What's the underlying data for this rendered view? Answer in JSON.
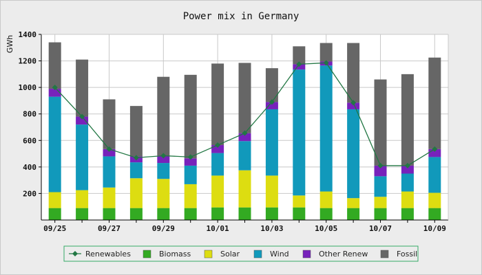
{
  "chart_data": {
    "type": "bar",
    "stacked": true,
    "title": "Power mix in Germany",
    "ylabel": "GWh",
    "xlabel": "",
    "ylim": [
      0,
      1400
    ],
    "yticks": [
      200,
      400,
      600,
      800,
      1000,
      1200,
      1400
    ],
    "grid": true,
    "legend_position": "bottom",
    "categories": [
      "09/25",
      "09/26",
      "09/27",
      "09/28",
      "09/29",
      "09/30",
      "10/01",
      "10/02",
      "10/03",
      "10/04",
      "10/05",
      "10/06",
      "10/07",
      "10/08",
      "10/09"
    ],
    "xtick_labels": [
      "09/25",
      "",
      "09/27",
      "",
      "09/29",
      "",
      "10/01",
      "",
      "10/03",
      "",
      "10/05",
      "",
      "10/07",
      "",
      "10/09"
    ],
    "series": [
      {
        "name": "Biomass",
        "color": "#33aa22",
        "values": [
          90,
          90,
          90,
          90,
          90,
          90,
          95,
          95,
          95,
          95,
          90,
          90,
          90,
          90,
          90
        ]
      },
      {
        "name": "Solar",
        "color": "#dddd11",
        "values": [
          120,
          135,
          155,
          225,
          220,
          180,
          240,
          280,
          240,
          90,
          125,
          75,
          85,
          125,
          115
        ]
      },
      {
        "name": "Wind",
        "color": "#1199bb",
        "values": [
          720,
          495,
          235,
          120,
          120,
          140,
          170,
          220,
          500,
          950,
          950,
          670,
          155,
          135,
          270
        ]
      },
      {
        "name": "Other Renew",
        "color": "#7722bb",
        "values": [
          60,
          60,
          55,
          45,
          55,
          55,
          60,
          60,
          55,
          40,
          30,
          50,
          80,
          60,
          60
        ]
      },
      {
        "name": "Fossil",
        "color": "#666666",
        "values": [
          350,
          430,
          375,
          380,
          595,
          630,
          615,
          530,
          255,
          135,
          140,
          450,
          650,
          690,
          690
        ]
      }
    ],
    "line_series": {
      "name": "Renewables",
      "color": "#227744",
      "values": [
        1000,
        780,
        535,
        470,
        485,
        475,
        565,
        655,
        890,
        1175,
        1185,
        885,
        410,
        410,
        535
      ]
    }
  }
}
